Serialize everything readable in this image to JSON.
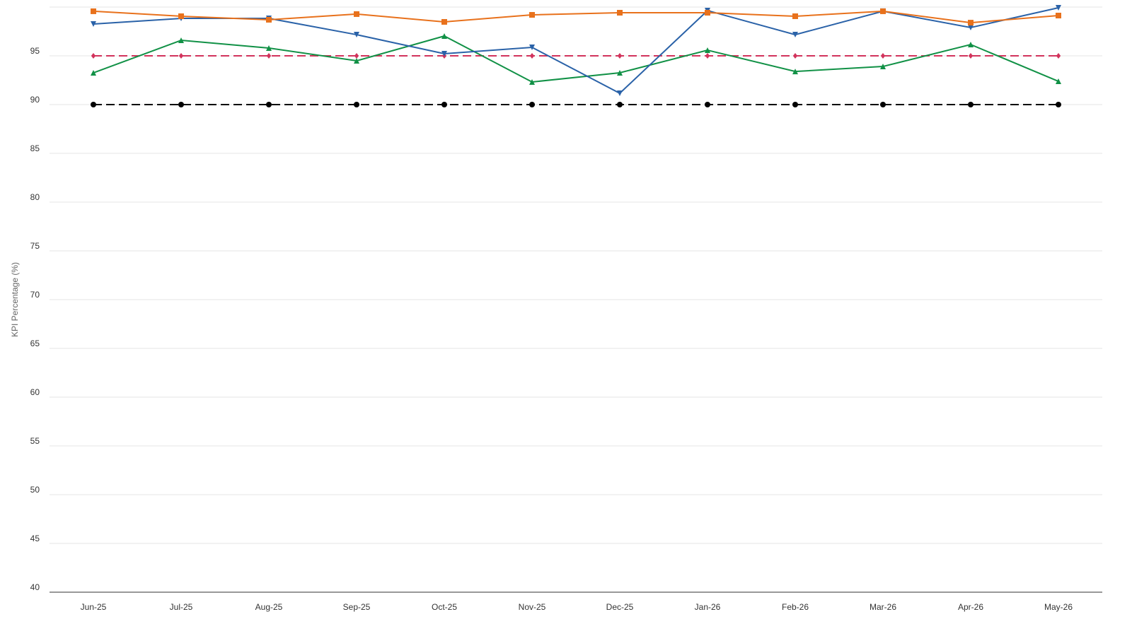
{
  "chart_data": {
    "type": "line",
    "y_label": "KPI Percentage (%)",
    "categories": [
      "Jun-25",
      "Jul-25",
      "Aug-25",
      "Sep-25",
      "Oct-25",
      "Nov-25",
      "Dec-25",
      "Jan-26",
      "Feb-26",
      "Mar-26",
      "Apr-26",
      "May-26"
    ],
    "series": [
      {
        "color": "#e8711c",
        "marker": "square",
        "dashed": false,
        "values": [
          99.57,
          99.06,
          98.7,
          99.28,
          98.48,
          99.2,
          99.42,
          99.42,
          99.06,
          99.57,
          98.4,
          99.13
        ]
      },
      {
        "color": "#2a62a8",
        "marker": "triangle-down",
        "dashed": false,
        "values": [
          98.26,
          98.84,
          98.84,
          97.17,
          95.22,
          95.87,
          91.16,
          99.64,
          97.17,
          99.57,
          97.9,
          99.93
        ]
      },
      {
        "color": "#119146",
        "marker": "triangle-up",
        "dashed": false,
        "values": [
          93.26,
          96.59,
          95.8,
          94.49,
          97.03,
          92.32,
          93.26,
          95.58,
          93.4,
          93.91,
          96.16,
          92.39
        ]
      },
      {
        "color": "#d2335c",
        "marker": "diamond",
        "dashed": true,
        "values": [
          95,
          95,
          95,
          95,
          95,
          95,
          95,
          95,
          95,
          95,
          95,
          95
        ]
      },
      {
        "color": "#000000",
        "marker": "circle",
        "dashed": true,
        "values": [
          90,
          90,
          90,
          90,
          90,
          90,
          90,
          90,
          90,
          90,
          90,
          90
        ]
      }
    ],
    "ylim": [
      40,
      100
    ],
    "yticks": [
      40,
      45,
      50,
      55,
      60,
      65,
      70,
      75,
      80,
      85,
      90,
      95
    ],
    "grid": true
  }
}
